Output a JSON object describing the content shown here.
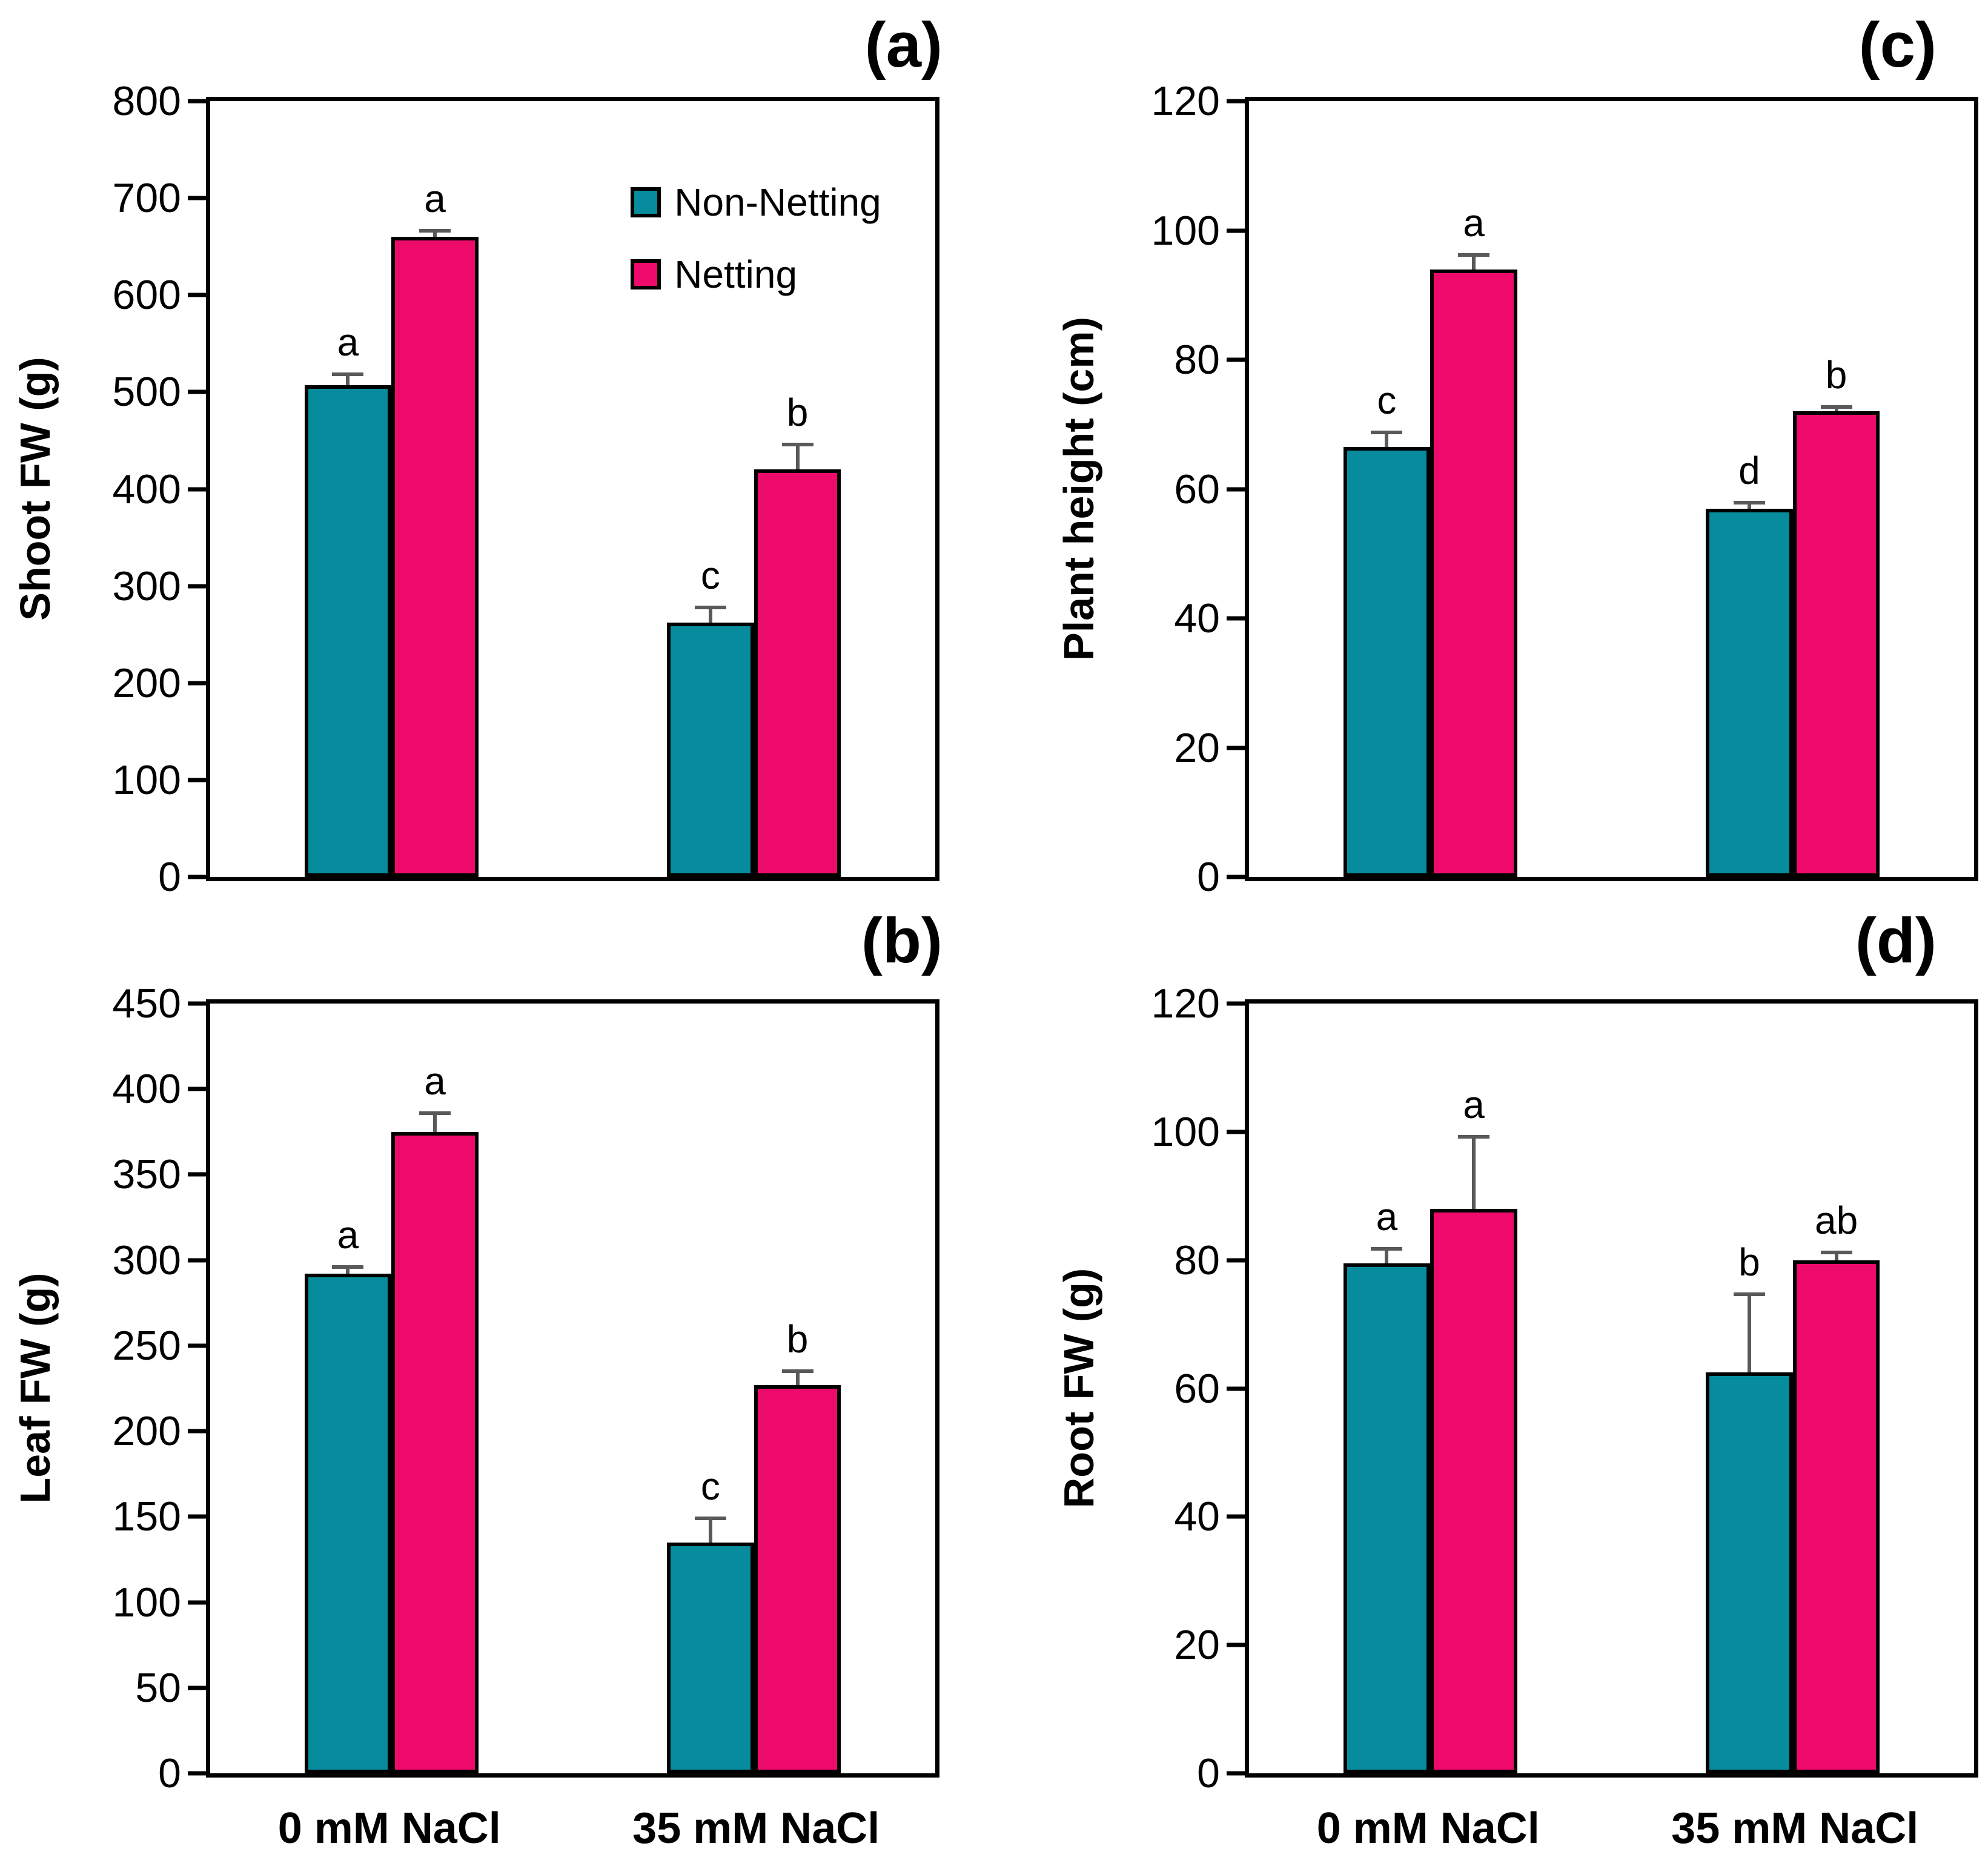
{
  "chart_data": {
    "type": "bar",
    "categories": [
      "0 mM NaCl",
      "35 mM NaCl"
    ],
    "legend": {
      "position": "inside-top-of-panel-a",
      "items": [
        {
          "label": "Non-Netting",
          "color": "#068C9C"
        },
        {
          "label": "Netting",
          "color": "#ED0A6A"
        }
      ]
    },
    "error_bar_color": "#595959",
    "grid": false,
    "panels": [
      {
        "id": "a",
        "title": "(a)",
        "ylabel": "Shoot FW (g)",
        "ylim": [
          0,
          800
        ],
        "ytick_step": 100,
        "series": [
          {
            "name": "Non-Netting",
            "values": [
              507,
              262
            ],
            "errors": [
              13,
              18
            ],
            "letters": [
              "a",
              "c"
            ]
          },
          {
            "name": "Netting",
            "values": [
              660,
              420
            ],
            "errors": [
              8,
              28
            ],
            "letters": [
              "a",
              "b"
            ]
          }
        ]
      },
      {
        "id": "b",
        "title": "(b)",
        "ylabel": "Leaf FW (g)",
        "ylim": [
          0,
          450
        ],
        "ytick_step": 50,
        "series": [
          {
            "name": "Non-Netting",
            "values": [
              292,
              135
            ],
            "errors": [
              5,
              15
            ],
            "letters": [
              "a",
              "c"
            ]
          },
          {
            "name": "Netting",
            "values": [
              375,
              227
            ],
            "errors": [
              12,
              9
            ],
            "letters": [
              "a",
              "b"
            ]
          }
        ]
      },
      {
        "id": "c",
        "title": "(c)",
        "ylabel": "Plant height (cm)",
        "ylim": [
          0,
          120
        ],
        "ytick_step": 20,
        "series": [
          {
            "name": "Non-Netting",
            "values": [
              66.5,
              57
            ],
            "errors": [
              2.5,
              1.2
            ],
            "letters": [
              "c",
              "d"
            ]
          },
          {
            "name": "Netting",
            "values": [
              94,
              72
            ],
            "errors": [
              2.5,
              1
            ],
            "letters": [
              "a",
              "b"
            ]
          }
        ]
      },
      {
        "id": "d",
        "title": "(d)",
        "ylabel": "Root FW (g)",
        "ylim": [
          0,
          120
        ],
        "ytick_step": 20,
        "series": [
          {
            "name": "Non-Netting",
            "values": [
              79.5,
              62.5
            ],
            "errors": [
              2.5,
              12.5
            ],
            "letters": [
              "a",
              "b"
            ]
          },
          {
            "name": "Netting",
            "values": [
              88,
              80
            ],
            "errors": [
              11.5,
              1.5
            ],
            "letters": [
              "a",
              "ab"
            ]
          }
        ]
      }
    ]
  }
}
